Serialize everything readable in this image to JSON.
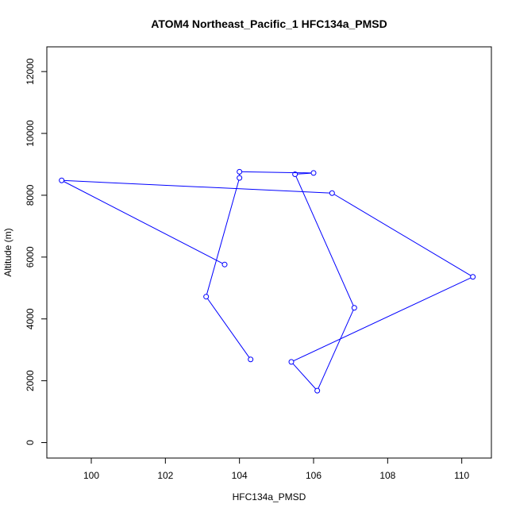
{
  "chart_data": {
    "type": "line",
    "title": "ATOM4 Northeast_Pacific_1 HFC134a_PMSD",
    "xlabel": "HFC134a_PMSD",
    "ylabel": "Altitude (m)",
    "xlim": [
      98.8,
      110.8
    ],
    "ylim": [
      -500,
      12800
    ],
    "xticks": [
      100,
      102,
      104,
      106,
      108,
      110
    ],
    "yticks": [
      0,
      2000,
      4000,
      6000,
      8000,
      10000,
      12000
    ],
    "grid": false,
    "series": [
      {
        "color": "#0000ff",
        "markers": "open-circle",
        "points": [
          {
            "x": 104.3,
            "y": 2690
          },
          {
            "x": 103.1,
            "y": 4720
          },
          {
            "x": 104.0,
            "y": 8560
          },
          {
            "x": 104.0,
            "y": 8760
          },
          {
            "x": 106.0,
            "y": 8720
          },
          {
            "x": 105.5,
            "y": 8680
          },
          {
            "x": 107.1,
            "y": 4360
          },
          {
            "x": 106.1,
            "y": 1680
          },
          {
            "x": 105.4,
            "y": 2610
          },
          {
            "x": 110.3,
            "y": 5360
          },
          {
            "x": 106.5,
            "y": 8070
          },
          {
            "x": 99.2,
            "y": 8480
          },
          {
            "x": 103.6,
            "y": 5760
          }
        ]
      }
    ]
  }
}
